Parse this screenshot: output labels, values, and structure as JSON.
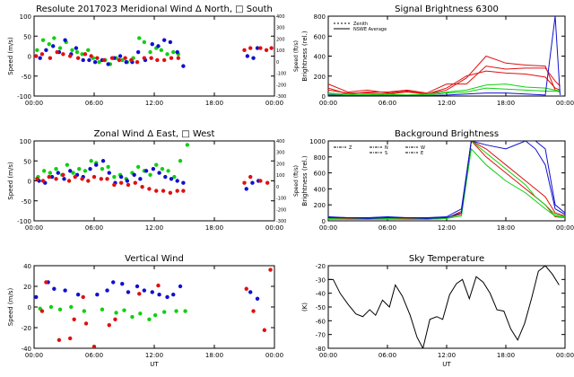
{
  "colors": {
    "red": "#e01010",
    "green": "#10d010",
    "blue": "#1010d0",
    "axis": "#000000",
    "text": "#000000"
  },
  "panels": {
    "meridional": {
      "title": "Resolute  2017023    Meridional Wind   Δ North, □ South",
      "ylabel": "Speed (m/s)",
      "y2label": "Speed (ft/s)"
    },
    "zonal": {
      "title": "Zonal Wind    Δ East, □ West",
      "ylabel": "Speed (m/s)",
      "y2label": "Speed (ft/s)"
    },
    "vertical": {
      "title": "Vertical Wind",
      "ylabel": "Speed (m/s)",
      "xlabel": "UT"
    },
    "signal": {
      "title": "Signal Brightness      6300",
      "ylabel": "Brightness (rel.)",
      "legend": [
        "Zenith",
        "NSWE Average"
      ]
    },
    "background": {
      "title": "Background Brightness",
      "ylabel": "Brightness (rel.)",
      "legend": [
        "Z",
        "N",
        "S",
        "W",
        "E"
      ]
    },
    "sky": {
      "title": "Sky Temperature",
      "ylabel": "(K)",
      "xlabel": "UT"
    }
  },
  "chart_data": [
    {
      "id": "meridional",
      "type": "scatter",
      "title": "Resolute  2017023    Meridional Wind   Δ North, □ South",
      "ylabel": "Speed (m/s)",
      "y2label": "Speed (ft/s)",
      "xlim": [
        0,
        24
      ],
      "ylim": [
        -100,
        100
      ],
      "xticks": [
        "00:00",
        "06:00",
        "12:00",
        "18:00",
        "00:00"
      ],
      "yticks": [
        "-100",
        "-50",
        "0",
        "50",
        "100"
      ],
      "y2ticks": [
        "-300",
        "-200",
        "-100",
        "0",
        "100",
        "200",
        "300",
        "400"
      ],
      "series": [
        {
          "color": "green",
          "x": [
            0.3,
            0.9,
            1.5,
            2.0,
            2.6,
            3.2,
            3.8,
            4.3,
            4.8,
            5.4,
            5.9,
            6.5,
            7.1,
            7.6,
            8.2,
            8.8,
            9.3,
            9.9,
            10.5,
            11.0,
            11.6,
            12.2,
            12.7,
            13.3,
            13.9,
            14.4
          ],
          "y": [
            15,
            40,
            30,
            45,
            20,
            35,
            15,
            10,
            5,
            15,
            -5,
            -15,
            -10,
            -20,
            -5,
            -10,
            -15,
            -5,
            45,
            35,
            10,
            20,
            15,
            5,
            10,
            5
          ]
        },
        {
          "color": "blue",
          "x": [
            0.6,
            1.2,
            1.9,
            2.5,
            3.1,
            3.7,
            4.2,
            4.9,
            5.5,
            6.1,
            6.8,
            7.4,
            8.0,
            8.6,
            9.2,
            9.8,
            10.4,
            11.1,
            11.8,
            12.4,
            13.0,
            13.6,
            14.3,
            14.9,
            21.3,
            21.9,
            22.3
          ],
          "y": [
            -5,
            15,
            25,
            10,
            40,
            5,
            20,
            -10,
            -10,
            -15,
            -10,
            -20,
            -5,
            0,
            -15,
            -15,
            10,
            -10,
            30,
            25,
            40,
            35,
            10,
            -25,
            0,
            -5,
            20
          ]
        },
        {
          "color": "red",
          "x": [
            0.2,
            0.8,
            1.6,
            2.3,
            2.9,
            3.6,
            4.4,
            5.1,
            5.7,
            6.3,
            7.0,
            7.8,
            8.5,
            9.1,
            9.7,
            10.3,
            11.0,
            11.7,
            12.3,
            13.0,
            13.7,
            14.4,
            21.0,
            21.6,
            22.6,
            23.2,
            23.7
          ],
          "y": [
            0,
            5,
            -5,
            10,
            5,
            0,
            -5,
            5,
            0,
            -5,
            -10,
            -5,
            -10,
            -5,
            -10,
            -15,
            -5,
            -5,
            -10,
            -10,
            -5,
            -5,
            15,
            20,
            20,
            15,
            20
          ]
        }
      ]
    },
    {
      "id": "zonal",
      "type": "scatter",
      "title": "Zonal Wind    Δ East, □ West",
      "ylabel": "Speed (m/s)",
      "y2label": "Speed (ft/s)",
      "xlim": [
        0,
        24
      ],
      "ylim": [
        -100,
        100
      ],
      "xticks": [
        "00:00",
        "06:00",
        "12:00",
        "18:00",
        "00:00"
      ],
      "yticks": [
        "-100",
        "-50",
        "0",
        "50",
        "100"
      ],
      "y2ticks": [
        "-300",
        "-200",
        "-100",
        "0",
        "100",
        "200",
        "300",
        "400"
      ],
      "series": [
        {
          "color": "green",
          "x": [
            0.4,
            1.0,
            1.6,
            2.2,
            2.8,
            3.3,
            3.9,
            4.5,
            5.1,
            5.7,
            6.2,
            6.8,
            7.4,
            8.0,
            8.6,
            9.2,
            9.8,
            10.4,
            11.0,
            11.6,
            12.2,
            12.8,
            13.4,
            14.0,
            14.6,
            15.3
          ],
          "y": [
            10,
            25,
            20,
            30,
            15,
            40,
            20,
            30,
            25,
            50,
            45,
            30,
            35,
            10,
            15,
            5,
            20,
            35,
            25,
            15,
            40,
            30,
            25,
            10,
            50,
            90
          ]
        },
        {
          "color": "blue",
          "x": [
            0.5,
            1.1,
            1.8,
            2.4,
            3.0,
            3.6,
            4.3,
            4.9,
            5.6,
            6.2,
            6.9,
            7.5,
            8.1,
            8.7,
            9.3,
            10.0,
            10.6,
            11.2,
            11.9,
            12.5,
            13.1,
            13.7,
            14.3,
            14.9,
            21.2,
            21.8,
            22.4
          ],
          "y": [
            0,
            -5,
            10,
            20,
            5,
            25,
            15,
            10,
            30,
            40,
            50,
            20,
            -5,
            10,
            0,
            15,
            5,
            25,
            30,
            20,
            10,
            5,
            0,
            -5,
            -20,
            -5,
            0
          ]
        },
        {
          "color": "red",
          "x": [
            0.3,
            0.9,
            1.5,
            2.2,
            2.9,
            3.5,
            4.1,
            4.8,
            5.4,
            6.0,
            6.7,
            7.3,
            8.0,
            8.7,
            9.4,
            10.1,
            10.8,
            11.5,
            12.2,
            12.9,
            13.6,
            14.3,
            14.9,
            21.0,
            21.6,
            22.6,
            23.3
          ],
          "y": [
            5,
            0,
            10,
            5,
            15,
            0,
            10,
            5,
            0,
            10,
            5,
            5,
            -10,
            -5,
            -10,
            -5,
            -15,
            -20,
            -25,
            -25,
            -30,
            -25,
            -25,
            -5,
            10,
            0,
            -5
          ]
        }
      ]
    },
    {
      "id": "vertical",
      "type": "scatter",
      "title": "Vertical Wind",
      "ylabel": "Speed (m/s)",
      "xlabel": "UT",
      "xlim": [
        0,
        24
      ],
      "ylim": [
        -50,
        50
      ],
      "xticks": [
        "00:00",
        "06:00",
        "12:00",
        "18:00",
        "00:00"
      ],
      "yticks": [
        "-40",
        "-20",
        "0",
        "20",
        "40"
      ],
      "series": [
        {
          "color": "blue",
          "x": [
            0.2,
            1.4,
            2.0,
            3.1,
            4.4,
            6.3,
            7.3,
            7.9,
            8.8,
            9.4,
            10.3,
            11.0,
            11.8,
            12.5,
            13.3,
            13.9,
            14.6,
            21.6,
            22.3
          ],
          "y": [
            12,
            30,
            22,
            20,
            15,
            15,
            20,
            30,
            28,
            18,
            25,
            20,
            18,
            15,
            12,
            15,
            25,
            18,
            10
          ]
        },
        {
          "color": "green",
          "x": [
            0.6,
            1.7,
            2.6,
            3.7,
            5.0,
            6.8,
            8.2,
            9.0,
            9.8,
            10.6,
            11.5,
            12.1,
            13.0,
            14.2,
            15.1
          ],
          "y": [
            -2,
            0,
            -3,
            0,
            -5,
            -3,
            -7,
            -4,
            -12,
            -8,
            -15,
            -10,
            -6,
            -5,
            -5
          ]
        },
        {
          "color": "red",
          "x": [
            0.8,
            1.2,
            2.5,
            3.6,
            4.0,
            4.9,
            5.2,
            6.0,
            7.5,
            8.1,
            10.5,
            12.4,
            21.2,
            21.9,
            23.0,
            23.6
          ],
          "y": [
            -5,
            30,
            -40,
            -38,
            -15,
            12,
            -20,
            -48,
            -22,
            -15,
            16,
            26,
            22,
            -5,
            -28,
            45
          ]
        }
      ]
    },
    {
      "id": "signal",
      "type": "line",
      "title": "Signal Brightness      6300",
      "ylabel": "Brightness (rel.)",
      "xlim": [
        0,
        24
      ],
      "ylim": [
        0,
        800
      ],
      "xticks": [
        "00:00",
        "06:00",
        "12:00",
        "18:00",
        "00:00"
      ],
      "yticks": [
        "0",
        "200",
        "400",
        "600",
        "800"
      ],
      "legend": [
        "Zenith",
        "NSWE Average"
      ],
      "x": [
        0,
        2,
        4,
        6,
        8,
        10,
        12,
        14,
        16,
        18,
        20,
        22,
        23,
        23.5
      ],
      "series": [
        {
          "color": "red",
          "values": [
            120,
            40,
            60,
            30,
            50,
            20,
            60,
            180,
            400,
            330,
            310,
            300,
            60,
            50
          ]
        },
        {
          "color": "red",
          "values": [
            80,
            20,
            40,
            40,
            60,
            30,
            120,
            120,
            300,
            270,
            280,
            280,
            150,
            100
          ]
        },
        {
          "color": "red",
          "values": [
            60,
            30,
            30,
            20,
            40,
            20,
            80,
            200,
            250,
            230,
            220,
            190,
            80,
            60
          ]
        },
        {
          "color": "green",
          "values": [
            20,
            10,
            20,
            10,
            10,
            20,
            40,
            60,
            110,
            120,
            90,
            80,
            60,
            50
          ]
        },
        {
          "color": "green",
          "values": [
            30,
            20,
            10,
            20,
            10,
            10,
            30,
            40,
            80,
            70,
            60,
            50,
            50,
            40
          ]
        },
        {
          "color": "blue",
          "values": [
            10,
            5,
            5,
            5,
            5,
            5,
            10,
            20,
            30,
            30,
            20,
            10,
            800,
            10
          ]
        }
      ]
    },
    {
      "id": "background",
      "type": "line",
      "title": "Background Brightness",
      "ylabel": "Brightness (rel.)",
      "xlim": [
        0,
        24
      ],
      "ylim": [
        0,
        1000
      ],
      "xticks": [
        "00:00",
        "06:00",
        "12:00",
        "18:00",
        "00:00"
      ],
      "yticks": [
        "0",
        "200",
        "400",
        "600",
        "800",
        "1000"
      ],
      "legend": [
        "Z",
        "N",
        "S",
        "W",
        "E"
      ],
      "x": [
        0,
        2,
        4,
        6,
        8,
        10,
        12,
        13.5,
        14.5,
        16,
        18,
        20,
        21,
        22,
        23,
        24
      ],
      "series": [
        {
          "color": "red",
          "values": [
            40,
            30,
            30,
            40,
            30,
            30,
            40,
            80,
            1000,
            800,
            600,
            400,
            300,
            200,
            50,
            40
          ]
        },
        {
          "color": "red",
          "values": [
            30,
            30,
            20,
            30,
            30,
            20,
            30,
            120,
            1000,
            900,
            700,
            500,
            400,
            300,
            100,
            60
          ]
        },
        {
          "color": "green",
          "values": [
            30,
            20,
            20,
            30,
            20,
            20,
            30,
            60,
            900,
            700,
            500,
            350,
            250,
            150,
            60,
            40
          ]
        },
        {
          "color": "green",
          "values": [
            20,
            20,
            20,
            20,
            20,
            20,
            30,
            100,
            1000,
            850,
            650,
            450,
            300,
            200,
            80,
            50
          ]
        },
        {
          "color": "blue",
          "values": [
            50,
            40,
            40,
            50,
            40,
            40,
            50,
            150,
            1000,
            1000,
            1000,
            1000,
            1000,
            900,
            200,
            100
          ]
        },
        {
          "color": "blue",
          "values": [
            40,
            40,
            30,
            40,
            40,
            30,
            40,
            100,
            1000,
            950,
            900,
            1000,
            900,
            700,
            150,
            80
          ]
        }
      ]
    },
    {
      "id": "sky",
      "type": "line",
      "title": "Sky Temperature",
      "ylabel": "(K)",
      "xlabel": "UT",
      "xlim": [
        0,
        24
      ],
      "ylim": [
        -80,
        -20
      ],
      "xticks": [
        "00:00",
        "06:00",
        "12:00",
        "18:00",
        "00:00"
      ],
      "yticks": [
        "-80",
        "-70",
        "-60",
        "-50",
        "-40",
        "-30",
        "-20"
      ],
      "series": [
        {
          "color": "axis",
          "x": [
            0,
            0.5,
            1.2,
            2.0,
            2.8,
            3.5,
            4.2,
            4.8,
            5.5,
            6.2,
            6.8,
            7.5,
            8.3,
            9.0,
            9.6,
            10.3,
            11.0,
            11.6,
            12.3,
            13.0,
            13.6,
            14.3,
            15.0,
            15.7,
            16.4,
            17.1,
            17.8,
            18.5,
            19.2,
            19.9,
            20.6,
            21.3,
            22.0,
            22.7,
            23.4
          ],
          "y": [
            -30,
            -30,
            -40,
            -48,
            -55,
            -57,
            -52,
            -56,
            -45,
            -50,
            -34,
            -42,
            -56,
            -72,
            -80,
            -59,
            -57,
            -59,
            -41,
            -33,
            -30,
            -44,
            -28,
            -32,
            -40,
            -52,
            -53,
            -66,
            -74,
            -62,
            -44,
            -24,
            -20,
            -26,
            -34
          ]
        }
      ]
    }
  ]
}
